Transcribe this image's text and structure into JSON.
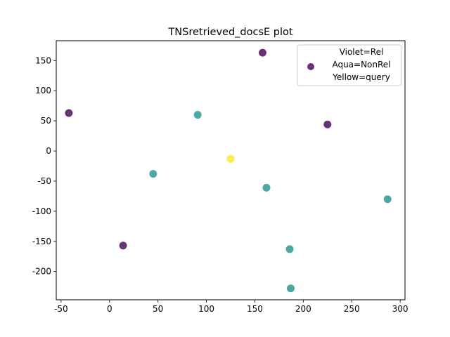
{
  "chart_data": {
    "type": "scatter",
    "title": "TNSretrieved_docsE plot",
    "xlabel": "",
    "ylabel": "",
    "xlim": [
      -55,
      305
    ],
    "ylim": [
      -247,
      183
    ],
    "xticks": [
      -50,
      0,
      50,
      100,
      150,
      200,
      250,
      300
    ],
    "yticks": [
      -200,
      -150,
      -100,
      -50,
      0,
      50,
      100,
      150
    ],
    "grid": false,
    "legend": {
      "placement": "top-right",
      "lines": [
        "Violet=Rel",
        "Aqua=NonRel",
        "Yellow=query"
      ],
      "marker_color": "#440154"
    },
    "points": [
      {
        "x": 158,
        "y": 163,
        "color": "#440154"
      },
      {
        "x": -42,
        "y": 63,
        "color": "#440154"
      },
      {
        "x": 225,
        "y": 44,
        "color": "#440154"
      },
      {
        "x": 14,
        "y": -157,
        "color": "#440154"
      },
      {
        "x": 91,
        "y": 60,
        "color": "#21918c"
      },
      {
        "x": 45,
        "y": -38,
        "color": "#21918c"
      },
      {
        "x": 162,
        "y": -61,
        "color": "#21918c"
      },
      {
        "x": 287,
        "y": -80,
        "color": "#21918c"
      },
      {
        "x": 186,
        "y": -163,
        "color": "#21918c"
      },
      {
        "x": 187,
        "y": -228,
        "color": "#21918c"
      },
      {
        "x": 125,
        "y": -13,
        "color": "#fde725"
      }
    ]
  }
}
